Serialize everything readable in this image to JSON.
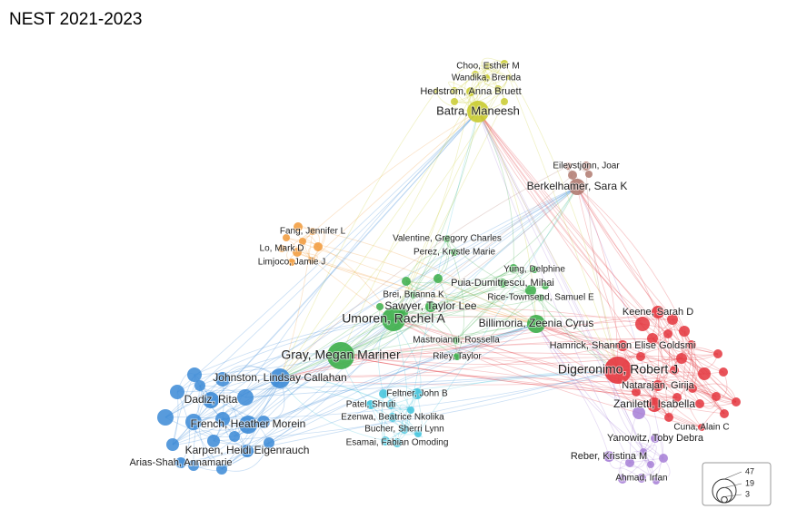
{
  "title": "NEST 2021-2023",
  "nodes": [
    {
      "label": "Choo, Esther M"
    },
    {
      "label": "Wandika, Brenda"
    },
    {
      "label": "Hedstrom, Anna Bruett"
    },
    {
      "label": "Batra, Maneesh"
    },
    {
      "label": "Eilevstjonn, Joar"
    },
    {
      "label": "Berkelhamer, Sara K"
    },
    {
      "label": "Fang, Jennifer L"
    },
    {
      "label": "Lo, Mark D"
    },
    {
      "label": "Limjoco, Jamie J"
    },
    {
      "label": "Valentine, Gregory Charles"
    },
    {
      "label": "Perez, Krystle Marie"
    },
    {
      "label": "Yung, Delphine"
    },
    {
      "label": "Puia-Dumitrescu, Mihai"
    },
    {
      "label": "Brei, Brianna K"
    },
    {
      "label": "Rice-Townsend, Samuel E"
    },
    {
      "label": "Sawyer, Taylor Lee"
    },
    {
      "label": "Umoren, Rachel A"
    },
    {
      "label": "Billimoria, Zeenia Cyrus"
    },
    {
      "label": "Mastroianni, Rossella"
    },
    {
      "label": "Riley, Taylor"
    },
    {
      "label": "Gray, Megan Mariner"
    },
    {
      "label": "Keene, Sarah D"
    },
    {
      "label": "Hamrick, Shannon Elise Goldsmi"
    },
    {
      "label": "Digeronimo, Robert J"
    },
    {
      "label": "Natarajan, Girija"
    },
    {
      "label": "Zaniletti, Isabella"
    },
    {
      "label": "Cuna, Alain C"
    },
    {
      "label": "Yanowitz, Toby Debra"
    },
    {
      "label": "Reber, Kristina M"
    },
    {
      "label": "Ahmad, Irfan"
    },
    {
      "label": "Feltner, John B"
    },
    {
      "label": "Patel, Shruti"
    },
    {
      "label": "Ezenwa, Beatrice Nkolika"
    },
    {
      "label": "Bucher, Sherri Lynn"
    },
    {
      "label": "Esamai, Fabian Omoding"
    },
    {
      "label": "Johnston, Lindsay Callahan"
    },
    {
      "label": "Dadiz, Rita"
    },
    {
      "label": "French, Heather Morein"
    },
    {
      "label": "Karpen, Heidi Eigenrauch"
    },
    {
      "label": "Arias-Shah, Annamarie"
    }
  ],
  "legend": {
    "sizes": [
      47,
      19,
      3
    ]
  }
}
